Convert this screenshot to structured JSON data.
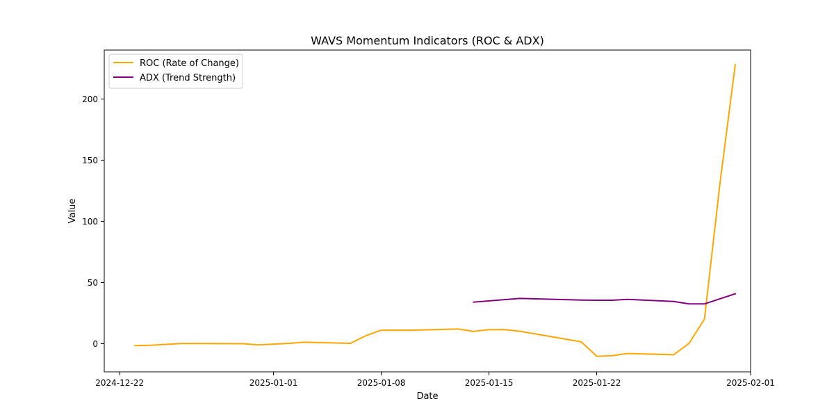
{
  "chart_data": {
    "type": "line",
    "title": "WAVS Momentum Indicators (ROC & ADX)",
    "xlabel": "Date",
    "ylabel": "Value",
    "x_ticks": [
      "2024-12-22",
      "2025-01-01",
      "2025-01-08",
      "2025-01-15",
      "2025-01-22",
      "2025-02-01"
    ],
    "y_ticks": [
      0,
      50,
      100,
      150,
      200
    ],
    "xlim": [
      "2024-12-21",
      "2025-02-01"
    ],
    "ylim": [
      -23,
      240
    ],
    "grid": false,
    "legend_location": "upper left",
    "series": [
      {
        "name": "ROC (Rate of Change)",
        "color": "#ffa500",
        "x": [
          "2024-12-23",
          "2024-12-24",
          "2024-12-26",
          "2024-12-27",
          "2024-12-30",
          "2024-12-31",
          "2025-01-02",
          "2025-01-03",
          "2025-01-06",
          "2025-01-07",
          "2025-01-08",
          "2025-01-10",
          "2025-01-13",
          "2025-01-14",
          "2025-01-15",
          "2025-01-16",
          "2025-01-17",
          "2025-01-21",
          "2025-01-22",
          "2025-01-23",
          "2025-01-24",
          "2025-01-27",
          "2025-01-28",
          "2025-01-29",
          "2025-01-30",
          "2025-01-31"
        ],
        "values": [
          -1.5,
          -1.3,
          0.1,
          0.1,
          0.0,
          -1.0,
          0.3,
          1.2,
          0.3,
          6.5,
          11.0,
          11.0,
          12.0,
          10.0,
          11.5,
          11.5,
          10.2,
          1.5,
          -10.3,
          -9.8,
          -8.0,
          -9.0,
          0.3,
          20.0,
          130.0,
          228.0
        ]
      },
      {
        "name": "ADX (Trend Strength)",
        "color": "#800080",
        "x": [
          "2025-01-14",
          "2025-01-17",
          "2025-01-21",
          "2025-01-22",
          "2025-01-23",
          "2025-01-24",
          "2025-01-27",
          "2025-01-28",
          "2025-01-29",
          "2025-01-31"
        ],
        "values": [
          34.0,
          37.0,
          35.7,
          35.5,
          35.5,
          36.2,
          34.5,
          32.5,
          32.5,
          40.8
        ]
      }
    ]
  }
}
